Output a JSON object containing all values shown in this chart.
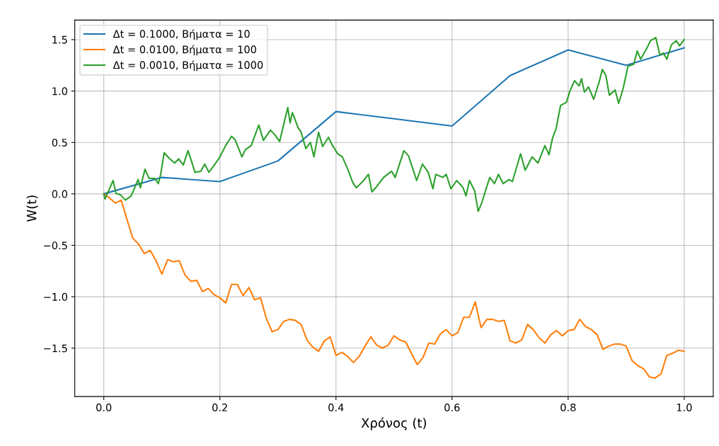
{
  "chart_data": {
    "type": "line",
    "xlabel": "Χρόνος (t)",
    "ylabel": "W(t)",
    "legend": "top left",
    "grid": true,
    "xlim": [
      -0.05,
      1.05
    ],
    "ylim": [
      -1.97,
      1.69
    ],
    "xticks": [
      {
        "value": 0,
        "label": "0.0"
      },
      {
        "value": 0.2,
        "label": "0.2"
      },
      {
        "value": 0.4,
        "label": "0.4"
      },
      {
        "value": 0.6,
        "label": "0.6"
      },
      {
        "value": 0.8,
        "label": "0.8"
      },
      {
        "value": 1,
        "label": "1.0"
      }
    ],
    "yticks": [
      {
        "value": -1.5,
        "label": "−1.5"
      },
      {
        "value": -1,
        "label": "−1.0"
      },
      {
        "value": -0.5,
        "label": "−0.5"
      },
      {
        "value": 0,
        "label": "0.0"
      },
      {
        "value": 0.5,
        "label": "0.5"
      },
      {
        "value": 1,
        "label": "1.0"
      },
      {
        "value": 1.5,
        "label": "1.5"
      }
    ],
    "series": [
      {
        "name": "Δt = 0.1000, Βήματα = 10",
        "color": "#1f77b4",
        "x": [
          0,
          0.1,
          0.2,
          0.3,
          0.4,
          0.5,
          0.6,
          0.7,
          0.8,
          0.9,
          1.0
        ],
        "values": [
          0,
          0.16,
          0.12,
          0.32,
          0.8,
          0.73,
          0.66,
          1.15,
          1.4,
          1.25,
          1.42
        ]
      },
      {
        "name": "Δt = 0.0100, Βήματα = 100",
        "color": "#ff7f0e",
        "x": [
          0,
          0.01,
          0.02,
          0.03,
          0.04,
          0.05,
          0.06,
          0.07,
          0.08,
          0.09,
          0.1,
          0.11,
          0.12,
          0.13,
          0.14,
          0.15,
          0.16,
          0.17,
          0.18,
          0.19,
          0.2,
          0.21,
          0.22,
          0.23,
          0.24,
          0.25,
          0.26,
          0.27,
          0.28,
          0.29,
          0.3,
          0.31,
          0.32,
          0.33,
          0.34,
          0.35,
          0.36,
          0.37,
          0.38,
          0.39,
          0.4,
          0.41,
          0.42,
          0.43,
          0.44,
          0.45,
          0.46,
          0.47,
          0.48,
          0.49,
          0.5,
          0.51,
          0.52,
          0.53,
          0.54,
          0.55,
          0.56,
          0.57,
          0.58,
          0.59,
          0.6,
          0.61,
          0.62,
          0.63,
          0.64,
          0.65,
          0.66,
          0.67,
          0.68,
          0.69,
          0.7,
          0.71,
          0.72,
          0.73,
          0.74,
          0.75,
          0.76,
          0.77,
          0.78,
          0.79,
          0.8,
          0.81,
          0.82,
          0.83,
          0.84,
          0.85,
          0.86,
          0.87,
          0.88,
          0.89,
          0.9,
          0.91,
          0.92,
          0.93,
          0.94,
          0.95,
          0.96,
          0.97,
          0.98,
          0.99,
          1.0
        ],
        "values": [
          0,
          -0.04,
          -0.09,
          -0.06,
          -0.25,
          -0.43,
          -0.49,
          -0.58,
          -0.55,
          -0.65,
          -0.78,
          -0.64,
          -0.66,
          -0.65,
          -0.79,
          -0.85,
          -0.84,
          -0.95,
          -0.92,
          -0.98,
          -1.01,
          -1.06,
          -0.88,
          -0.88,
          -0.99,
          -0.91,
          -1.03,
          -1.01,
          -1.21,
          -1.34,
          -1.32,
          -1.24,
          -1.22,
          -1.23,
          -1.27,
          -1.42,
          -1.49,
          -1.53,
          -1.43,
          -1.39,
          -1.57,
          -1.54,
          -1.58,
          -1.64,
          -1.58,
          -1.48,
          -1.39,
          -1.47,
          -1.5,
          -1.47,
          -1.38,
          -1.42,
          -1.44,
          -1.55,
          -1.66,
          -1.59,
          -1.45,
          -1.46,
          -1.36,
          -1.32,
          -1.38,
          -1.35,
          -1.2,
          -1.2,
          -1.05,
          -1.3,
          -1.22,
          -1.22,
          -1.24,
          -1.23,
          -1.43,
          -1.45,
          -1.42,
          -1.27,
          -1.32,
          -1.4,
          -1.45,
          -1.37,
          -1.33,
          -1.38,
          -1.33,
          -1.32,
          -1.22,
          -1.29,
          -1.32,
          -1.37,
          -1.51,
          -1.48,
          -1.46,
          -1.46,
          -1.48,
          -1.62,
          -1.67,
          -1.7,
          -1.78,
          -1.79,
          -1.75,
          -1.57,
          -1.55,
          -1.52,
          -1.53
        ]
      },
      {
        "name": "Δt = 0.0010, Βήματα = 1000",
        "color": "#2ca02c",
        "x": [
          0,
          0.002,
          0.009,
          0.016,
          0.021,
          0.029,
          0.037,
          0.047,
          0.051,
          0.059,
          0.063,
          0.071,
          0.078,
          0.088,
          0.094,
          0.098,
          0.104,
          0.112,
          0.122,
          0.129,
          0.137,
          0.145,
          0.151,
          0.157,
          0.167,
          0.174,
          0.181,
          0.189,
          0.199,
          0.21,
          0.22,
          0.226,
          0.238,
          0.244,
          0.254,
          0.267,
          0.275,
          0.287,
          0.294,
          0.303,
          0.311,
          0.317,
          0.321,
          0.325,
          0.335,
          0.34,
          0.348,
          0.356,
          0.362,
          0.37,
          0.377,
          0.387,
          0.393,
          0.403,
          0.411,
          0.421,
          0.429,
          0.435,
          0.446,
          0.456,
          0.462,
          0.47,
          0.482,
          0.496,
          0.502,
          0.517,
          0.525,
          0.539,
          0.549,
          0.559,
          0.567,
          0.572,
          0.584,
          0.59,
          0.598,
          0.608,
          0.619,
          0.624,
          0.63,
          0.639,
          0.645,
          0.651,
          0.657,
          0.665,
          0.673,
          0.68,
          0.688,
          0.698,
          0.704,
          0.718,
          0.726,
          0.738,
          0.748,
          0.76,
          0.767,
          0.773,
          0.779,
          0.787,
          0.797,
          0.803,
          0.811,
          0.819,
          0.823,
          0.828,
          0.835,
          0.844,
          0.854,
          0.859,
          0.865,
          0.871,
          0.881,
          0.887,
          0.895,
          0.903,
          0.913,
          0.919,
          0.925,
          0.935,
          0.942,
          0.951,
          0.958,
          0.964,
          0.97,
          0.978,
          0.986,
          0.992,
          1.0
        ],
        "values": [
          0,
          -0.05,
          0.04,
          0.13,
          0.005,
          -0.01,
          -0.06,
          -0.02,
          0.03,
          0.14,
          0.06,
          0.24,
          0.15,
          0.15,
          0.1,
          0.19,
          0.4,
          0.35,
          0.3,
          0.34,
          0.28,
          0.42,
          0.32,
          0.21,
          0.22,
          0.29,
          0.21,
          0.27,
          0.35,
          0.47,
          0.56,
          0.53,
          0.36,
          0.43,
          0.47,
          0.67,
          0.52,
          0.62,
          0.58,
          0.51,
          0.7,
          0.84,
          0.69,
          0.79,
          0.64,
          0.6,
          0.44,
          0.5,
          0.36,
          0.6,
          0.46,
          0.55,
          0.48,
          0.39,
          0.36,
          0.23,
          0.11,
          0.06,
          0.12,
          0.19,
          0.02,
          0.07,
          0.16,
          0.22,
          0.16,
          0.42,
          0.37,
          0.13,
          0.29,
          0.21,
          0.05,
          0.19,
          0.16,
          0.19,
          0.05,
          0.13,
          0.06,
          -0.02,
          0.13,
          0.03,
          -0.17,
          -0.09,
          0.02,
          0.16,
          0.1,
          0.19,
          0.1,
          0.14,
          0.12,
          0.39,
          0.23,
          0.36,
          0.3,
          0.47,
          0.38,
          0.54,
          0.63,
          0.86,
          0.89,
          1.0,
          1.1,
          1.05,
          1.12,
          0.99,
          1.04,
          0.92,
          1.1,
          1.21,
          1.15,
          0.96,
          1.01,
          0.88,
          1.03,
          1.24,
          1.26,
          1.39,
          1.31,
          1.41,
          1.49,
          1.52,
          1.35,
          1.37,
          1.31,
          1.45,
          1.49,
          1.44,
          1.5
        ]
      }
    ]
  }
}
